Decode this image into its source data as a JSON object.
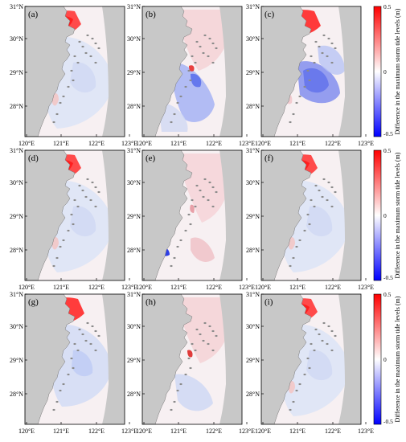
{
  "panels": [
    {
      "label": "(a)",
      "pattern": "a"
    },
    {
      "label": "(b)",
      "pattern": "b"
    },
    {
      "label": "(c)",
      "pattern": "c"
    },
    {
      "label": "(d)",
      "pattern": "a"
    },
    {
      "label": "(e)",
      "pattern": "e"
    },
    {
      "label": "(f)",
      "pattern": "a"
    },
    {
      "label": "(g)",
      "pattern": "g"
    },
    {
      "label": "(h)",
      "pattern": "h"
    },
    {
      "label": "(i)",
      "pattern": "a"
    }
  ],
  "lat_ticks": [
    "31°N",
    "30°N",
    "29°N",
    "28°N"
  ],
  "lon_ticks": [
    "120°E",
    "121°E",
    "122°E",
    "123°E"
  ],
  "colorbar": {
    "label": "Difference in the maximum storm tide levels (m)",
    "ticks": [
      "0.5",
      "0",
      "-0.5"
    ],
    "range": [
      -0.5,
      0.5
    ],
    "color_max": "#ff0000",
    "color_mid": "#ffffff",
    "color_min": "#0000ff"
  },
  "colors": {
    "land": "#c8c8c8",
    "sea": "#f7f0f2"
  }
}
